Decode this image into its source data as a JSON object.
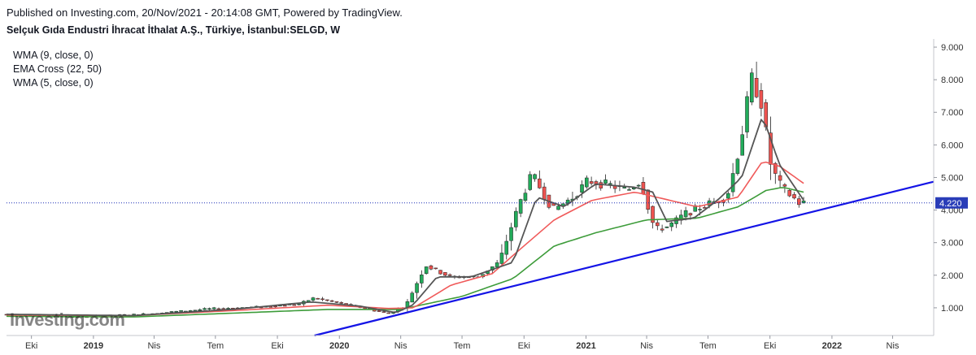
{
  "header": {
    "published": "Published on Investing.com, 20/Nov/2021 - 20:14:08 GMT, Powered by TradingView.",
    "title": "Selçuk Gıda Endustri İhracat İthalat A.Ş., Türkiye, İstanbul:SELGD, W"
  },
  "legend": [
    "WMA (9, close, 0)",
    "EMA Cross (22, 50)",
    "WMA (5, close, 0)"
  ],
  "logo_text": "Investing.com",
  "colors": {
    "up": "#26a69a",
    "up_fill": "#22ab5a",
    "down": "#ef5350",
    "ema_fast": "#f05a5a",
    "ema_slow": "#3d9c3a",
    "wma": "#555555",
    "trendline": "#1414e6",
    "price_line": "#1c2fb5",
    "axis": "#9598a1",
    "grid": "#e6e6e6"
  },
  "chart_data": {
    "type": "candlestick",
    "y_axis": {
      "ticks": [
        "1.000",
        "2.000",
        "3.000",
        "4.000",
        "5.000",
        "6.000",
        "7.000",
        "8.000",
        "9.000"
      ],
      "range": [
        0.15,
        9.25
      ]
    },
    "x_axis": {
      "ticks": [
        "Eki",
        "2019",
        "Nis",
        "Tem",
        "Eki",
        "2020",
        "Nis",
        "Tem",
        "Eki",
        "2021",
        "Nis",
        "Tem",
        "Eki",
        "2022",
        "Nis"
      ],
      "tick_dates": [
        "2018-10-01",
        "2019-01-01",
        "2019-04-01",
        "2019-07-01",
        "2019-10-01",
        "2020-01-01",
        "2020-04-01",
        "2020-07-01",
        "2020-10-01",
        "2021-01-01",
        "2021-04-01",
        "2021-07-01",
        "2021-10-01",
        "2022-01-01",
        "2022-04-01"
      ],
      "bold": [
        "2019",
        "2020",
        "2021",
        "2022"
      ],
      "range": [
        "2018-08-25",
        "2022-06-01"
      ]
    },
    "last_price": "4.220",
    "last_price_value": 4.22,
    "trendline": {
      "from": [
        "2019-11-25",
        0.15
      ],
      "to": [
        "2022-06-01",
        4.87
      ]
    },
    "ohlc_keypoints": [
      [
        "2018-08-25",
        0.8
      ],
      [
        "2018-12-15",
        0.72
      ],
      [
        "2019-03-20",
        0.8
      ],
      [
        "2019-07-01",
        0.97
      ],
      [
        "2019-09-15",
        1.03
      ],
      [
        "2019-11-10",
        1.12
      ],
      [
        "2019-12-01",
        1.3
      ],
      [
        "2020-02-01",
        1.05
      ],
      [
        "2020-03-20",
        0.82
      ],
      [
        "2020-04-15",
        1.05
      ],
      [
        "2020-05-15",
        2.3
      ],
      [
        "2020-06-20",
        1.95
      ],
      [
        "2020-08-01",
        1.95
      ],
      [
        "2020-09-01",
        2.4
      ],
      [
        "2020-10-01",
        4.2
      ],
      [
        "2020-10-20",
        5.1
      ],
      [
        "2020-11-20",
        4.0
      ],
      [
        "2020-12-20",
        4.4
      ],
      [
        "2021-01-10",
        4.9
      ],
      [
        "2021-02-15",
        4.75
      ],
      [
        "2021-03-10",
        4.6
      ],
      [
        "2021-03-30",
        4.9
      ],
      [
        "2021-04-20",
        3.4
      ],
      [
        "2021-05-10",
        3.5
      ],
      [
        "2021-06-05",
        3.9
      ],
      [
        "2021-07-10",
        4.2
      ],
      [
        "2021-08-05",
        4.4
      ],
      [
        "2021-08-25",
        6.0
      ],
      [
        "2021-09-10",
        8.1
      ],
      [
        "2021-09-25",
        7.3
      ],
      [
        "2021-10-10",
        5.3
      ],
      [
        "2021-10-25",
        4.7
      ],
      [
        "2021-11-20",
        4.22
      ]
    ],
    "ema_fast_keypoints": [
      [
        "2018-08-25",
        0.78
      ],
      [
        "2019-03-01",
        0.76
      ],
      [
        "2019-08-01",
        0.92
      ],
      [
        "2019-12-15",
        1.08
      ],
      [
        "2020-03-15",
        0.98
      ],
      [
        "2020-04-20",
        1.0
      ],
      [
        "2020-06-15",
        1.7
      ],
      [
        "2020-08-15",
        2.05
      ],
      [
        "2020-10-01",
        2.9
      ],
      [
        "2020-11-15",
        3.7
      ],
      [
        "2021-01-10",
        4.3
      ],
      [
        "2021-03-15",
        4.55
      ],
      [
        "2021-04-25",
        4.35
      ],
      [
        "2021-06-15",
        4.1
      ],
      [
        "2021-08-15",
        4.4
      ],
      [
        "2021-09-20",
        5.5
      ],
      [
        "2021-10-15",
        5.35
      ],
      [
        "2021-11-20",
        4.82
      ]
    ],
    "ema_slow_keypoints": [
      [
        "2018-08-25",
        0.74
      ],
      [
        "2019-03-01",
        0.72
      ],
      [
        "2019-08-01",
        0.84
      ],
      [
        "2019-12-15",
        0.95
      ],
      [
        "2020-04-01",
        0.95
      ],
      [
        "2020-07-01",
        1.35
      ],
      [
        "2020-09-15",
        1.9
      ],
      [
        "2020-11-15",
        2.9
      ],
      [
        "2021-01-15",
        3.3
      ],
      [
        "2021-04-01",
        3.7
      ],
      [
        "2021-06-15",
        3.75
      ],
      [
        "2021-08-15",
        4.1
      ],
      [
        "2021-09-25",
        4.6
      ],
      [
        "2021-10-20",
        4.7
      ],
      [
        "2021-11-20",
        4.55
      ]
    ],
    "wma_keypoints": [
      [
        "2018-08-25",
        0.8
      ],
      [
        "2019-03-01",
        0.76
      ],
      [
        "2019-08-01",
        0.96
      ],
      [
        "2019-11-20",
        1.18
      ],
      [
        "2020-02-01",
        1.05
      ],
      [
        "2020-03-25",
        0.85
      ],
      [
        "2020-04-20",
        1.1
      ],
      [
        "2020-05-25",
        1.95
      ],
      [
        "2020-07-15",
        1.95
      ],
      [
        "2020-09-15",
        2.4
      ],
      [
        "2020-10-20",
        4.4
      ],
      [
        "2020-11-30",
        4.1
      ],
      [
        "2021-01-15",
        4.8
      ],
      [
        "2021-03-15",
        4.7
      ],
      [
        "2021-04-10",
        4.55
      ],
      [
        "2021-05-01",
        3.65
      ],
      [
        "2021-06-10",
        3.75
      ],
      [
        "2021-07-15",
        4.3
      ],
      [
        "2021-08-20",
        5.0
      ],
      [
        "2021-09-20",
        6.9
      ],
      [
        "2021-10-15",
        5.4
      ],
      [
        "2021-11-20",
        4.3
      ]
    ]
  }
}
